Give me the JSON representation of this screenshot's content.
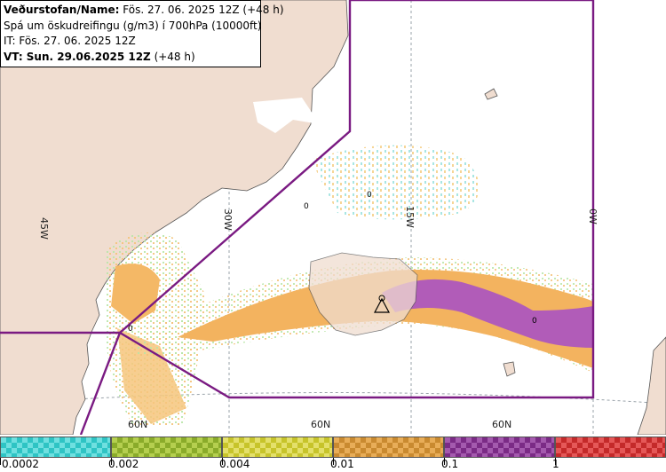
{
  "info": {
    "line1_bold": "Veðurstofan/Name:",
    "line1_rest": " Fös. 27. 06. 2025 12Z (+48 h)",
    "line2": "Spá um öskudreifingu (g/m3) í 700hPa (10000ft)",
    "line3": "IT: Fös. 27. 06. 2025 12Z",
    "line4_bold": "VT: Sun. 29.06.2025 12Z",
    "line4_rest": " (+48 h)"
  },
  "map": {
    "lon_labels": [
      "45W",
      "30W",
      "15W",
      "0W"
    ],
    "lat_labels": [
      "60N",
      "60N",
      "60N"
    ],
    "markers": [
      "0",
      "0",
      "0",
      "0"
    ],
    "colors": {
      "land": "#f0ddd0",
      "sea": "#ffffff",
      "boundary": "#7a1a82",
      "grid": "#9aa3aa"
    }
  },
  "legend": {
    "swatches": [
      {
        "color": "#2ec4c4",
        "alt": "#6fe0e0"
      },
      {
        "color": "#8aab2a",
        "alt": "#b5cf4f"
      },
      {
        "color": "#c7c42a",
        "alt": "#e4e06a"
      },
      {
        "color": "#c98a30",
        "alt": "#e8ad58"
      },
      {
        "color": "#7b2b86",
        "alt": "#a45aae"
      },
      {
        "color": "#c42a2a",
        "alt": "#e55858"
      }
    ],
    "labels": [
      "0.0002",
      "0.002",
      "0.004",
      "0.01",
      "0.1",
      "1"
    ]
  }
}
